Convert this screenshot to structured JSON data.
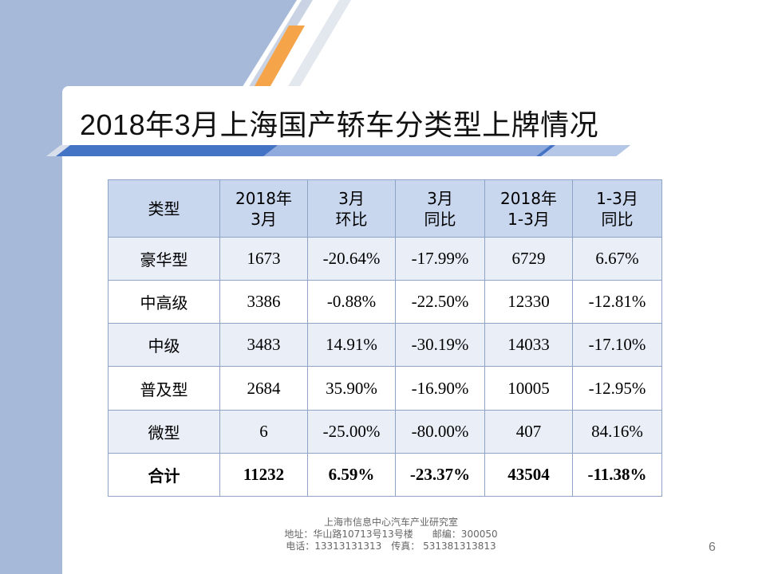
{
  "title": "2018年3月上海国产轿车分类型上牌情况",
  "table": {
    "headers": [
      [
        "类型"
      ],
      [
        "2018年",
        "3月"
      ],
      [
        "3月",
        "环比"
      ],
      [
        "3月",
        "同比"
      ],
      [
        "2018年",
        "1-3月"
      ],
      [
        "1-3月",
        "同比"
      ]
    ],
    "rows": [
      [
        "豪华型",
        "1673",
        "-20.64%",
        "-17.99%",
        "6729",
        "6.67%"
      ],
      [
        "中高级",
        "3386",
        "-0.88%",
        "-22.50%",
        "12330",
        "-12.81%"
      ],
      [
        "中级",
        "3483",
        "14.91%",
        "-30.19%",
        "14033",
        "-17.10%"
      ],
      [
        "普及型",
        "2684",
        "35.90%",
        "-16.90%",
        "10005",
        "-12.95%"
      ],
      [
        "微型",
        "6",
        "-25.00%",
        "-80.00%",
        "407",
        "84.16%"
      ],
      [
        "合计",
        "11232",
        "6.59%",
        "-23.37%",
        "43504",
        "-11.38%"
      ]
    ]
  },
  "footer": {
    "org": "上海市信息中心汽车产业研究室",
    "address": "地址：华山路10713号13号楼　　邮编：300050",
    "phone": "电话：13313131313　传真：  531381313813"
  },
  "page_number": "6",
  "colors": {
    "sidebar": "#a7b9d8",
    "header_fill": "#c8d7ee",
    "banded_row": "#e9eef7",
    "accent_orange": "#f5a449",
    "accent_blue": "#4472c4"
  }
}
